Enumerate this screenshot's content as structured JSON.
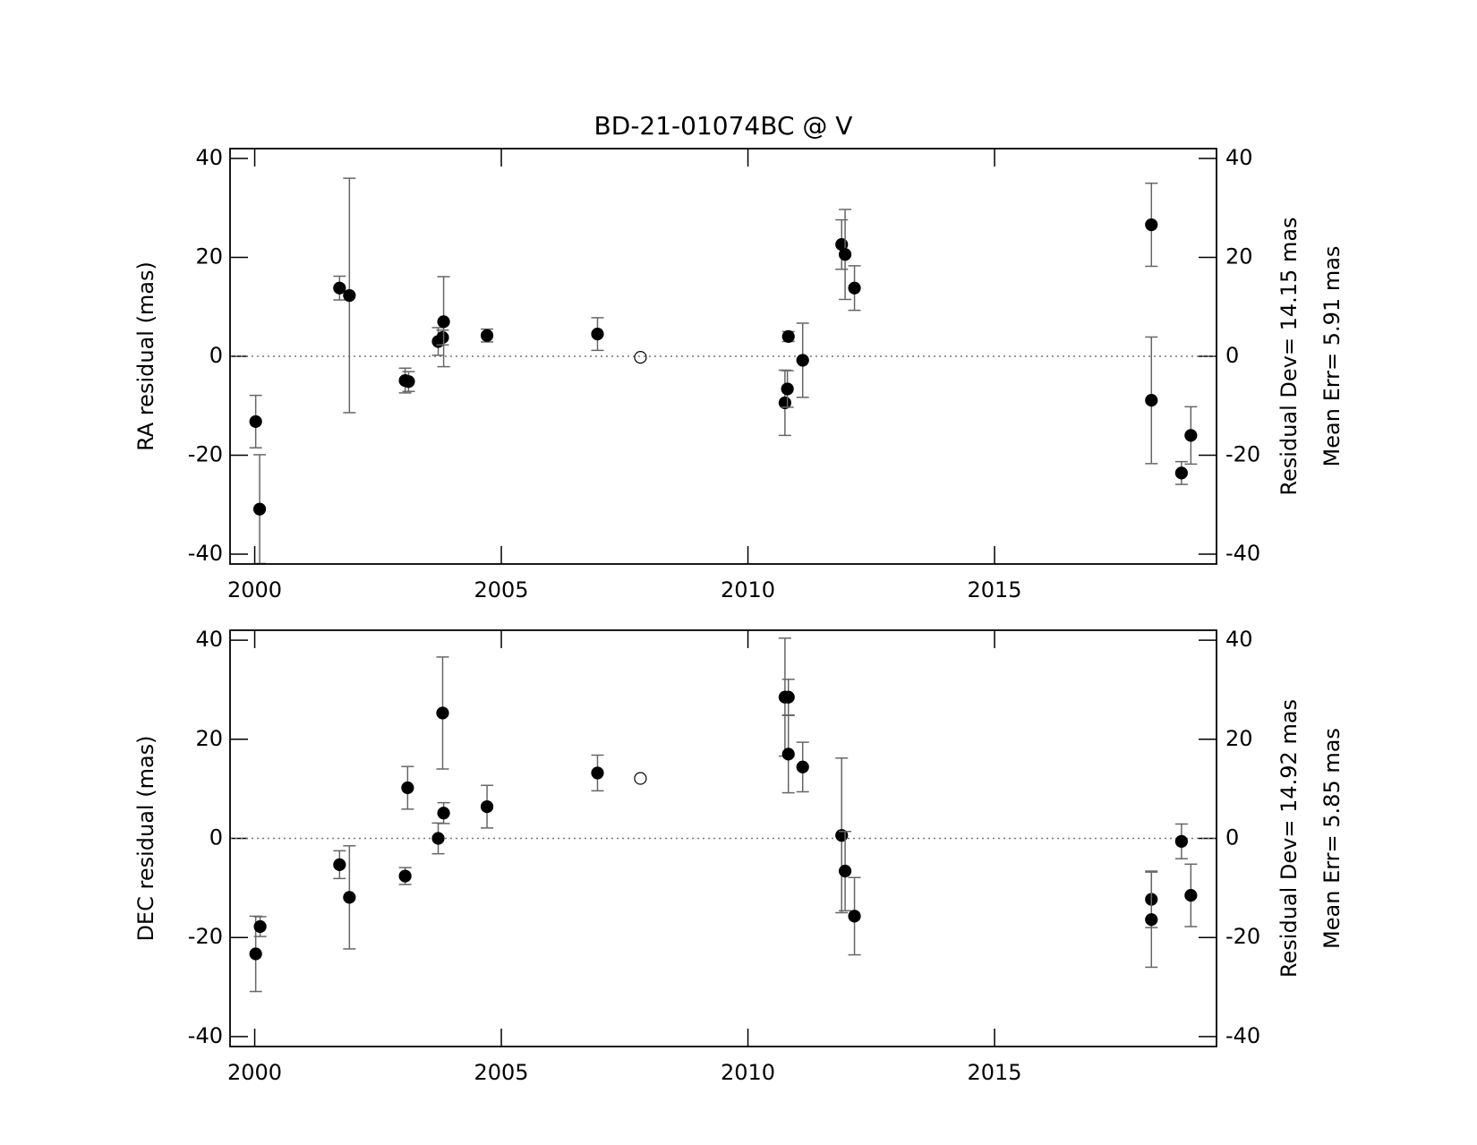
{
  "chart_data": [
    {
      "type": "scatter",
      "title": "BD-21-01074BC @ V",
      "ylabel": "RA residual (mas)",
      "annotations": [
        "Residual Dev= 14.15 mas",
        "Mean Err= 5.91 mas"
      ],
      "xlim": [
        1999.5,
        2019.5
      ],
      "xticks": [
        2000,
        2005,
        2010,
        2015
      ],
      "ylim": [
        -42,
        42
      ],
      "yticks": [
        -40,
        -20,
        0,
        20,
        40
      ],
      "reference_line": 0,
      "series": [
        {
          "marker": "filled",
          "color": "#000000",
          "error_color": "#666666",
          "x": [
            2000.02,
            2000.1,
            2001.72,
            2001.92,
            2003.05,
            2003.12,
            2003.72,
            2003.81,
            2003.83,
            2004.71,
            2006.95,
            2010.75,
            2010.8,
            2010.82,
            2011.11,
            2011.9,
            2011.97,
            2012.16,
            2018.18,
            2018.18,
            2018.79,
            2018.98
          ],
          "values": [
            -13.2,
            -30.9,
            13.8,
            12.3,
            -4.9,
            -5.1,
            3.0,
            3.8,
            7.0,
            4.2,
            4.5,
            -9.4,
            -6.6,
            4.0,
            -0.8,
            22.6,
            20.6,
            13.8,
            26.6,
            -8.9,
            -23.6,
            -16.0
          ],
          "errors": [
            5.3,
            11,
            2.4,
            23.7,
            2.5,
            2,
            2.8,
            1.5,
            9.1,
            1.3,
            3.3,
            6.6,
            3.7,
            1,
            7.5,
            5,
            9.1,
            4.5,
            8.4,
            12.8,
            2.3,
            5.8
          ]
        },
        {
          "marker": "open",
          "color": "#000000",
          "x": [
            2007.82
          ],
          "values": [
            -0.2
          ]
        }
      ]
    },
    {
      "type": "scatter",
      "ylabel": "DEC residual (mas)",
      "annotations": [
        "Residual Dev= 14.92 mas",
        "Mean Err= 5.85 mas"
      ],
      "xlim": [
        1999.5,
        2019.5
      ],
      "xticks": [
        2000,
        2005,
        2010,
        2015
      ],
      "ylim": [
        -42,
        42
      ],
      "yticks": [
        -40,
        -20,
        0,
        20,
        40
      ],
      "reference_line": 0,
      "series": [
        {
          "marker": "filled",
          "color": "#000000",
          "error_color": "#666666",
          "x": [
            2000.02,
            2000.11,
            2001.72,
            2001.92,
            2003.05,
            2003.1,
            2003.72,
            2003.81,
            2003.83,
            2004.71,
            2006.95,
            2010.75,
            2010.82,
            2010.82,
            2011.11,
            2011.9,
            2011.97,
            2012.16,
            2018.18,
            2018.18,
            2018.79,
            2018.98
          ],
          "values": [
            -23.3,
            -17.8,
            -5.3,
            -11.9,
            -7.6,
            10.2,
            0,
            25.3,
            5.1,
            6.4,
            13.2,
            28.5,
            28.5,
            17.0,
            14.4,
            0.6,
            -6.6,
            -15.7,
            -12.3,
            -16.4,
            -0.6,
            -11.5
          ],
          "errors": [
            7.6,
            2,
            2.8,
            10.4,
            1.7,
            4.3,
            3.1,
            11.3,
            2.1,
            4.3,
            3.6,
            11.9,
            3.6,
            7.8,
            5,
            15.6,
            8,
            7.8,
            5.7,
            9.6,
            3.5,
            6.3
          ]
        },
        {
          "marker": "open",
          "color": "#000000",
          "x": [
            2007.82
          ],
          "values": [
            12.1
          ]
        }
      ]
    }
  ]
}
